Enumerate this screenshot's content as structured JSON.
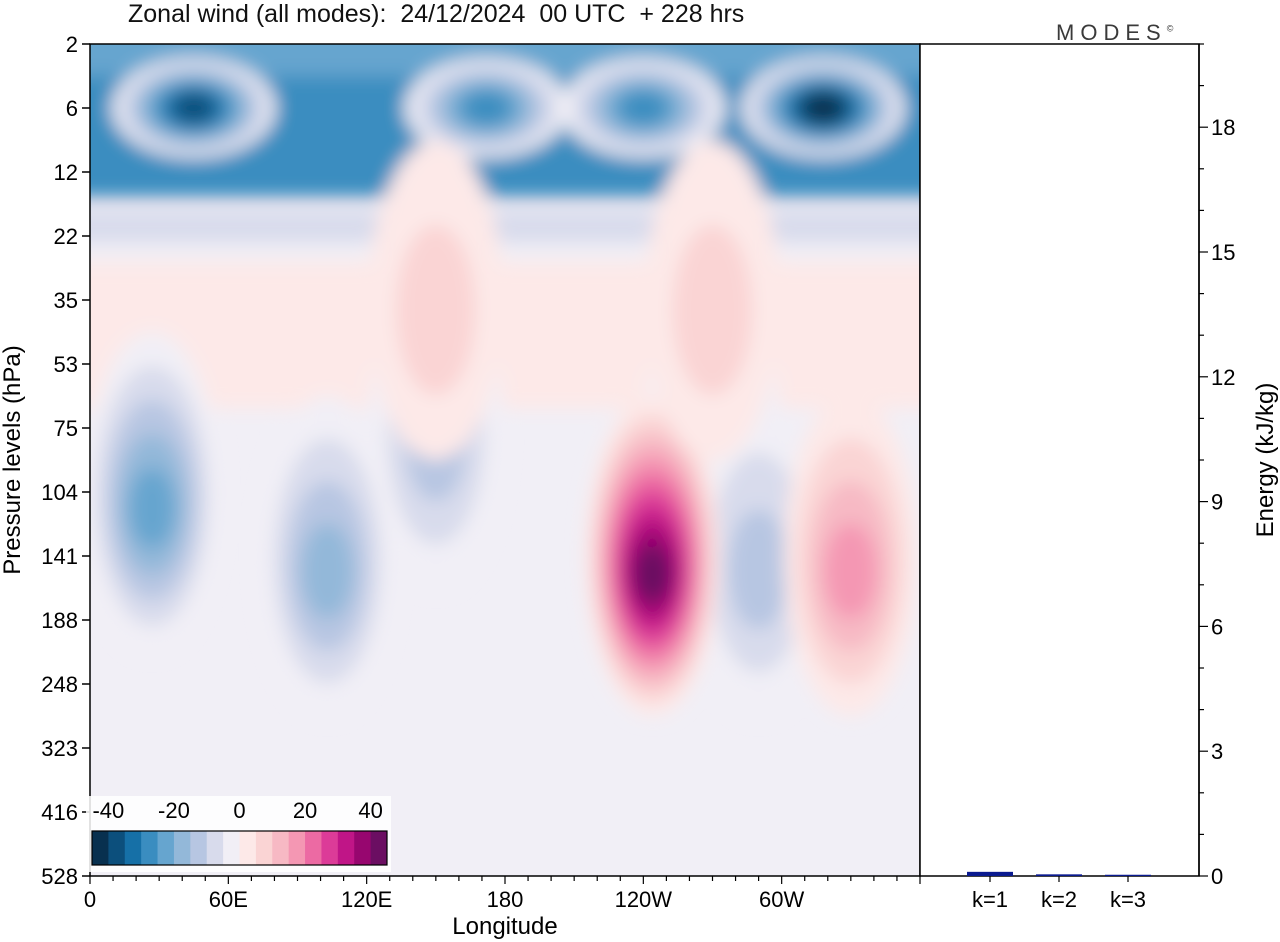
{
  "title": "Zonal wind (all modes):  24/12/2024  00 UTC  + 228 hrs",
  "brand": "MODES",
  "brand_mark": "©",
  "chart_data": [
    {
      "type": "heatmap",
      "title": "Zonal wind (all modes):  24/12/2024  00 UTC  + 228 hrs",
      "xlabel": "Longitude",
      "ylabel": "Pressure levels (hPa)",
      "x_ticks": [
        "0",
        "60E",
        "120E",
        "180",
        "120W",
        "60W"
      ],
      "x_tick_values": [
        0,
        60,
        120,
        180,
        240,
        300
      ],
      "xlim": [
        0,
        360
      ],
      "y_ticks": [
        "2",
        "6",
        "12",
        "22",
        "35",
        "53",
        "75",
        "104",
        "141",
        "188",
        "248",
        "323",
        "416",
        "528"
      ],
      "colorbar": {
        "labels": [
          "-40",
          "-20",
          "0",
          "20",
          "40"
        ],
        "label_values": [
          -40,
          -20,
          0,
          20,
          40
        ],
        "range": [
          -45,
          45
        ],
        "step": 5,
        "colors": [
          "#08304f",
          "#0c4f7c",
          "#1670a7",
          "#3a8dc0",
          "#66a5cf",
          "#93b8d9",
          "#b7c6e2",
          "#d8dbec",
          "#f1eff6",
          "#fde9e8",
          "#fad4d4",
          "#f7b9c4",
          "#f497b3",
          "#ec6aa3",
          "#dc3b98",
          "#c01587",
          "#97066f",
          "#6b0e62"
        ]
      },
      "features": [
        {
          "lon": 45,
          "level": "6",
          "value": -38
        },
        {
          "lon": 318,
          "level": "6",
          "value": -42
        },
        {
          "lon": 172,
          "level": "6",
          "value": -28
        },
        {
          "lon": 240,
          "level": "6",
          "value": -30
        },
        {
          "lon": 27,
          "level": "104",
          "value": -22
        },
        {
          "lon": 103,
          "level": "141",
          "value": -20
        },
        {
          "lon": 150,
          "level": "75",
          "value": -12
        },
        {
          "lon": 270,
          "level": "75",
          "value": -12
        },
        {
          "lon": 290,
          "level": "141",
          "value": -15
        },
        {
          "lon": 244,
          "level": "141",
          "value": 42
        },
        {
          "lon": 330,
          "level": "141",
          "value": 18
        },
        {
          "lon": 150,
          "level": "35",
          "value": 6
        },
        {
          "lon": 270,
          "level": "35",
          "value": 6
        }
      ]
    },
    {
      "type": "bar",
      "ylabel": "Energy (kJ/kg)",
      "categories": [
        "k=1",
        "k=2",
        "k=3"
      ],
      "values": [
        0.1,
        0.04,
        0.03
      ],
      "ylim": [
        0,
        20
      ],
      "y_ticks": [
        "0",
        "3",
        "6",
        "9",
        "12",
        "15",
        "18"
      ],
      "y_tick_values": [
        0,
        3,
        6,
        9,
        12,
        15,
        18
      ],
      "bar_color": "#0a1a8f"
    }
  ]
}
